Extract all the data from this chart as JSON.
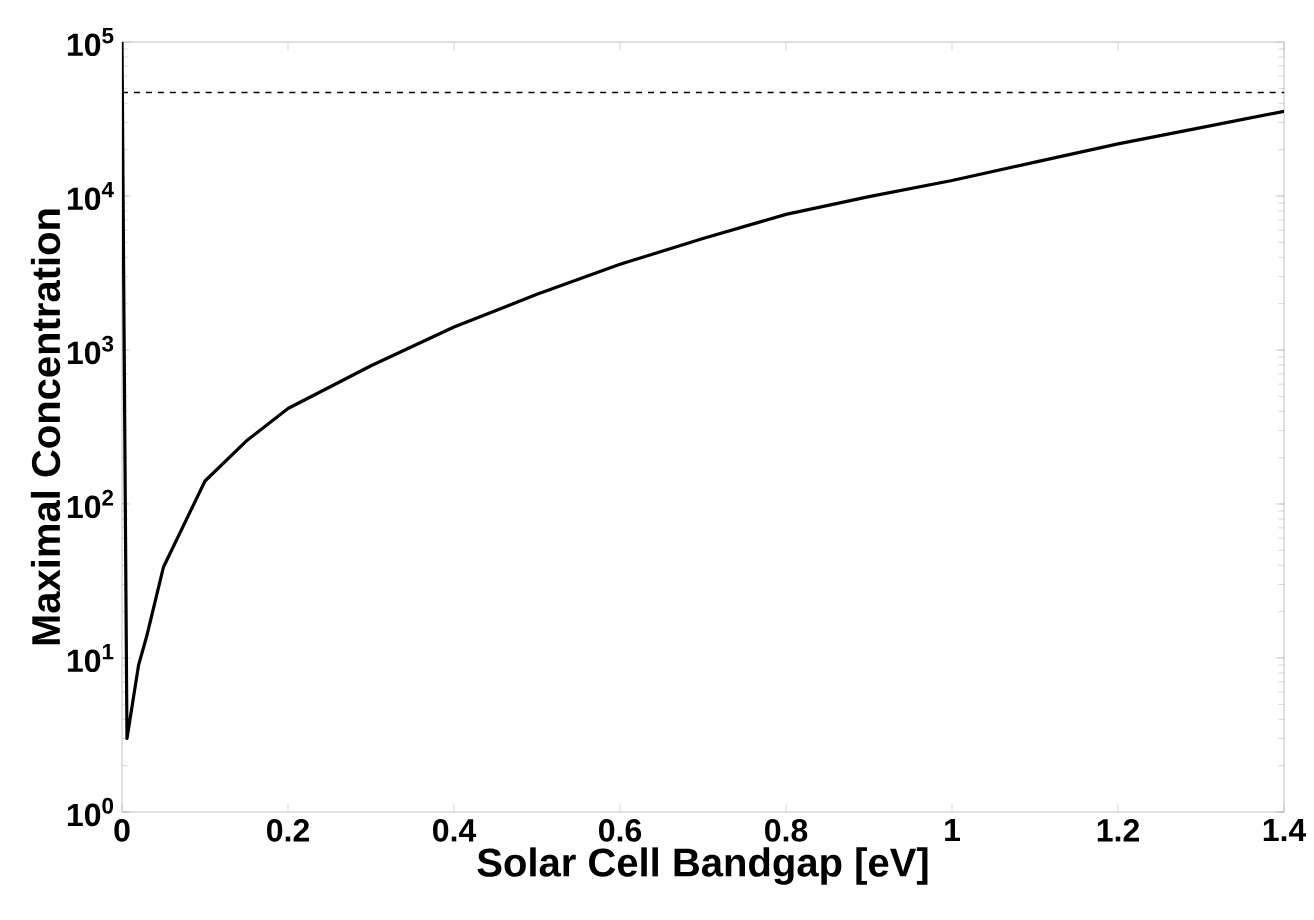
{
  "chart_data": {
    "type": "line",
    "xlabel": "Solar Cell Bandgap [eV]",
    "ylabel": "Maximal Concentration",
    "log": "y",
    "x": [
      0,
      0.006,
      0.02,
      0.03,
      0.05,
      0.1,
      0.15,
      0.2,
      0.3,
      0.4,
      0.5,
      0.6,
      0.7,
      0.8,
      0.9,
      1.0,
      1.1,
      1.2,
      1.3,
      1.4
    ],
    "series": [
      {
        "color": "#000000",
        "values": [
          100000,
          3,
          9,
          14,
          39,
          141,
          257,
          417,
          790,
          1410,
          2300,
          3600,
          5300,
          7600,
          9900,
          12600,
          16600,
          21800,
          27800,
          35500
        ]
      }
    ],
    "xlim": [
      0,
      1.4
    ],
    "ylim": [
      1,
      100000
    ],
    "xticks": [
      0,
      0.2,
      0.4,
      0.6,
      0.8,
      1,
      1.2,
      1.4
    ],
    "yticks": [
      {
        "value": 1,
        "label": "10$^{0}$"
      },
      {
        "value": 10,
        "label": "10$^{1}$"
      },
      {
        "value": 100,
        "label": "10$^{2}$"
      },
      {
        "value": 1000,
        "label": "10$^{3}$"
      },
      {
        "value": 10000,
        "label": "10$^{4}$"
      },
      {
        "value": 100000,
        "label": "10$^{5}$"
      }
    ],
    "ref_lines": [
      {
        "axis": "y",
        "value": 47000,
        "color": "#000000",
        "line_style": "dashed"
      }
    ],
    "grid": false,
    "marker": "none",
    "line_style": "solid"
  }
}
